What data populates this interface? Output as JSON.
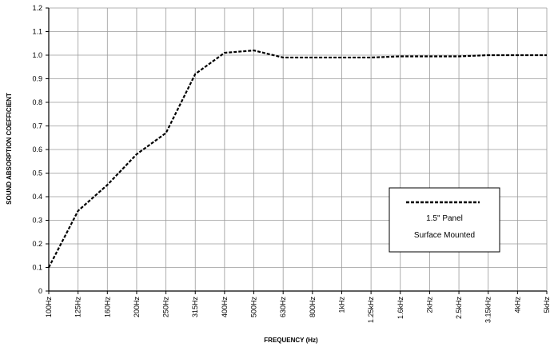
{
  "chart_data": {
    "type": "line",
    "categories": [
      "100Hz",
      "125Hz",
      "160Hz",
      "200Hz",
      "250Hz",
      "315Hz",
      "400Hz",
      "500Hz",
      "630Hz",
      "800Hz",
      "1kHz",
      "1.25kHz",
      "1.6kHz",
      "2kHz",
      "2.5kHz",
      "3.15kHz",
      "4kHz",
      "5kHz"
    ],
    "series": [
      {
        "name": "1.5\" Panel Surface Mounted",
        "values": [
          0.1,
          0.34,
          0.45,
          0.58,
          0.67,
          0.92,
          1.01,
          1.02,
          0.99,
          0.99,
          0.99,
          0.99,
          0.995,
          0.995,
          0.995,
          1.0,
          1.0,
          1.0
        ],
        "color": "#000000",
        "style": "dashed"
      }
    ],
    "yticks": [
      "0",
      "0.1",
      "0.2",
      "0.3",
      "0.4",
      "0.5",
      "0.6",
      "0.7",
      "0.8",
      "0.9",
      "1.0",
      "1.1",
      "1.2"
    ],
    "ylim": [
      0,
      1.2
    ],
    "xlabel": "FREQUENCY (Hz)",
    "ylabel": "SOUND ABSORPTION COEFFICIENT",
    "grid": true,
    "legend": {
      "position": "lower-right",
      "line1": "1.5\" Panel",
      "line2": "Surface Mounted"
    }
  }
}
